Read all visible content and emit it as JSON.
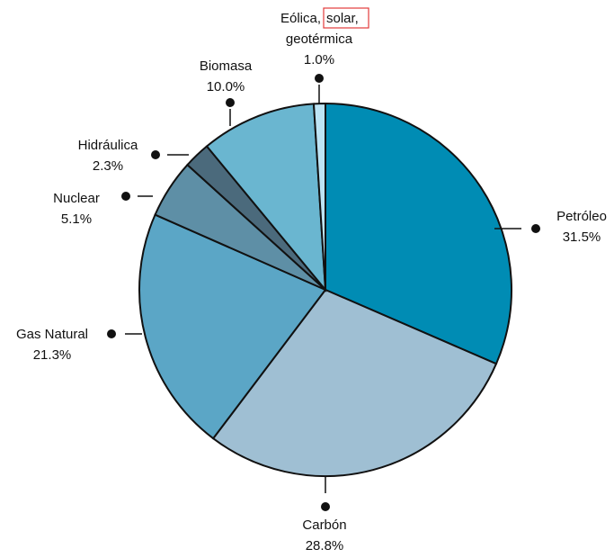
{
  "chart_data": {
    "type": "pie",
    "title": "",
    "slices": [
      {
        "label": "Petróleo",
        "value_label": "31.5%",
        "value": 31.5,
        "color": "#008cb4"
      },
      {
        "label": "Carbón",
        "value_label": "28.8%",
        "value": 28.8,
        "color": "#9fbfd3"
      },
      {
        "label": "Gas Natural",
        "value_label": "21.3%",
        "value": 21.3,
        "color": "#5ba6c6"
      },
      {
        "label": "Nuclear",
        "value_label": "5.1%",
        "value": 5.1,
        "color": "#5e8fa6"
      },
      {
        "label": "Hidráulica",
        "value_label": "2.3%",
        "value": 2.3,
        "color": "#4b6a7c"
      },
      {
        "label": "Biomasa",
        "value_label": "10.0%",
        "value": 10.0,
        "color": "#6ab6d0"
      },
      {
        "label_parts": [
          "Eólica,",
          "solar,",
          "geotérmica"
        ],
        "value_label": "1.0%",
        "value": 1.0,
        "color": "#bde4f4",
        "highlighted_word": "solar,"
      }
    ],
    "highlight_color": "#e23b3b"
  }
}
